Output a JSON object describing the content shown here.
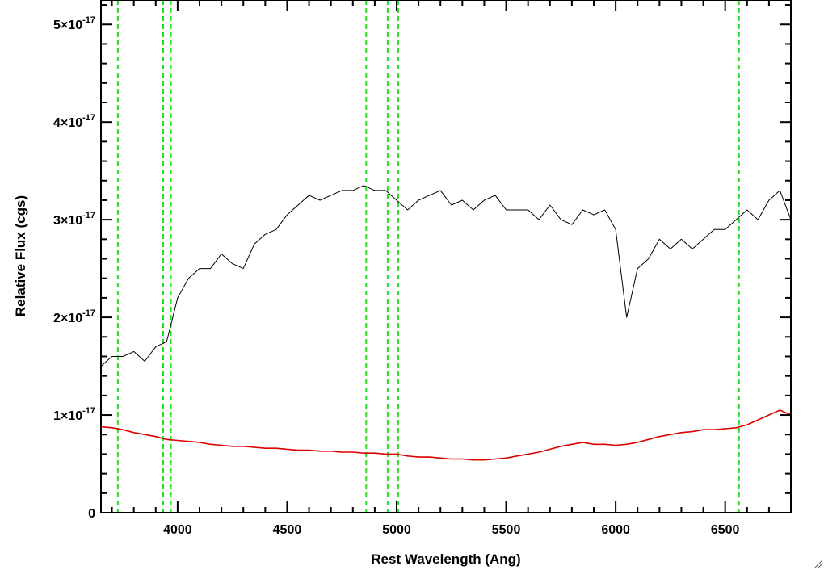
{
  "chart_data": {
    "type": "line",
    "xlabel": "Rest Wavelength (Ang)",
    "ylabel": "Relative Flux (cgs)",
    "xlim": [
      3650,
      6800
    ],
    "ylim": [
      0,
      5.25e-17
    ],
    "x_ticks": [
      {
        "value": 4000,
        "label": "4000"
      },
      {
        "value": 4500,
        "label": "4500"
      },
      {
        "value": 5000,
        "label": "5000"
      },
      {
        "value": 5500,
        "label": "5500"
      },
      {
        "value": 6000,
        "label": "6000"
      },
      {
        "value": 6500,
        "label": "6500"
      }
    ],
    "y_ticks": [
      {
        "value": 0,
        "label": "0",
        "mantissa": "",
        "exponent": ""
      },
      {
        "value": 1e-17,
        "label": "1×10",
        "mantissa": "1×10",
        "exponent": "-17"
      },
      {
        "value": 2e-17,
        "label": "2×10",
        "mantissa": "2×10",
        "exponent": "-17"
      },
      {
        "value": 3e-17,
        "label": "3×10",
        "mantissa": "3×10",
        "exponent": "-17"
      },
      {
        "value": 4e-17,
        "label": "4×10",
        "mantissa": "4×10",
        "exponent": "-17"
      },
      {
        "value": 5e-17,
        "label": "5×10",
        "mantissa": "5×10",
        "exponent": "-17"
      }
    ],
    "vertical_lines": [
      3727,
      3934,
      3969,
      4861,
      4959,
      5007,
      6563
    ],
    "series": [
      {
        "color": "#000000",
        "points": [
          [
            3650,
            1.5e-17
          ],
          [
            3700,
            1.6e-17
          ],
          [
            3750,
            1.6e-17
          ],
          [
            3800,
            1.65e-17
          ],
          [
            3850,
            1.55e-17
          ],
          [
            3900,
            1.7e-17
          ],
          [
            3950,
            1.75e-17
          ],
          [
            4000,
            2.2e-17
          ],
          [
            4050,
            2.4e-17
          ],
          [
            4100,
            2.5e-17
          ],
          [
            4150,
            2.5e-17
          ],
          [
            4200,
            2.65e-17
          ],
          [
            4250,
            2.55e-17
          ],
          [
            4300,
            2.5e-17
          ],
          [
            4350,
            2.75e-17
          ],
          [
            4400,
            2.85e-17
          ],
          [
            4450,
            2.9e-17
          ],
          [
            4500,
            3.05e-17
          ],
          [
            4550,
            3.15e-17
          ],
          [
            4600,
            3.25e-17
          ],
          [
            4650,
            3.2e-17
          ],
          [
            4700,
            3.25e-17
          ],
          [
            4750,
            3.3e-17
          ],
          [
            4800,
            3.3e-17
          ],
          [
            4850,
            3.35e-17
          ],
          [
            4900,
            3.3e-17
          ],
          [
            4950,
            3.3e-17
          ],
          [
            5000,
            3.2e-17
          ],
          [
            5050,
            3.1e-17
          ],
          [
            5100,
            3.2e-17
          ],
          [
            5150,
            3.25e-17
          ],
          [
            5200,
            3.3e-17
          ],
          [
            5250,
            3.15e-17
          ],
          [
            5300,
            3.2e-17
          ],
          [
            5350,
            3.1e-17
          ],
          [
            5400,
            3.2e-17
          ],
          [
            5450,
            3.25e-17
          ],
          [
            5500,
            3.1e-17
          ],
          [
            5550,
            3.1e-17
          ],
          [
            5600,
            3.1e-17
          ],
          [
            5650,
            3e-17
          ],
          [
            5700,
            3.15e-17
          ],
          [
            5750,
            3e-17
          ],
          [
            5800,
            2.95e-17
          ],
          [
            5850,
            3.1e-17
          ],
          [
            5900,
            3.05e-17
          ],
          [
            5950,
            3.1e-17
          ],
          [
            6000,
            2.9e-17
          ],
          [
            6050,
            2e-17
          ],
          [
            6100,
            2.5e-17
          ],
          [
            6150,
            2.6e-17
          ],
          [
            6200,
            2.8e-17
          ],
          [
            6250,
            2.7e-17
          ],
          [
            6300,
            2.8e-17
          ],
          [
            6350,
            2.7e-17
          ],
          [
            6400,
            2.8e-17
          ],
          [
            6450,
            2.9e-17
          ],
          [
            6500,
            2.9e-17
          ],
          [
            6550,
            3e-17
          ],
          [
            6600,
            3.1e-17
          ],
          [
            6650,
            3e-17
          ],
          [
            6700,
            3.2e-17
          ],
          [
            6750,
            3.3e-17
          ],
          [
            6800,
            3e-17
          ]
        ]
      },
      {
        "color": "#dd0000",
        "points": [
          [
            3650,
            8.8e-18
          ],
          [
            3700,
            8.7e-18
          ],
          [
            3750,
            8.5e-18
          ],
          [
            3800,
            8.2e-18
          ],
          [
            3850,
            8e-18
          ],
          [
            3900,
            7.8e-18
          ],
          [
            3950,
            7.5e-18
          ],
          [
            4000,
            7.4e-18
          ],
          [
            4050,
            7.3e-18
          ],
          [
            4100,
            7.2e-18
          ],
          [
            4150,
            7e-18
          ],
          [
            4200,
            6.9e-18
          ],
          [
            4250,
            6.8e-18
          ],
          [
            4300,
            6.8e-18
          ],
          [
            4350,
            6.7e-18
          ],
          [
            4400,
            6.6e-18
          ],
          [
            4450,
            6.6e-18
          ],
          [
            4500,
            6.5e-18
          ],
          [
            4550,
            6.4e-18
          ],
          [
            4600,
            6.4e-18
          ],
          [
            4650,
            6.3e-18
          ],
          [
            4700,
            6.3e-18
          ],
          [
            4750,
            6.2e-18
          ],
          [
            4800,
            6.2e-18
          ],
          [
            4850,
            6.1e-18
          ],
          [
            4900,
            6.1e-18
          ],
          [
            4950,
            6e-18
          ],
          [
            5000,
            6e-18
          ],
          [
            5050,
            5.8e-18
          ],
          [
            5100,
            5.7e-18
          ],
          [
            5150,
            5.7e-18
          ],
          [
            5200,
            5.6e-18
          ],
          [
            5250,
            5.5e-18
          ],
          [
            5300,
            5.5e-18
          ],
          [
            5350,
            5.4e-18
          ],
          [
            5400,
            5.4e-18
          ],
          [
            5450,
            5.5e-18
          ],
          [
            5500,
            5.6e-18
          ],
          [
            5550,
            5.8e-18
          ],
          [
            5600,
            6e-18
          ],
          [
            5650,
            6.2e-18
          ],
          [
            5700,
            6.5e-18
          ],
          [
            5750,
            6.8e-18
          ],
          [
            5800,
            7e-18
          ],
          [
            5850,
            7.2e-18
          ],
          [
            5900,
            7e-18
          ],
          [
            5950,
            7e-18
          ],
          [
            6000,
            6.9e-18
          ],
          [
            6050,
            7e-18
          ],
          [
            6100,
            7.2e-18
          ],
          [
            6150,
            7.5e-18
          ],
          [
            6200,
            7.8e-18
          ],
          [
            6250,
            8e-18
          ],
          [
            6300,
            8.2e-18
          ],
          [
            6350,
            8.3e-18
          ],
          [
            6400,
            8.5e-18
          ],
          [
            6450,
            8.5e-18
          ],
          [
            6500,
            8.6e-18
          ],
          [
            6550,
            8.7e-18
          ],
          [
            6600,
            9e-18
          ],
          [
            6650,
            9.5e-18
          ],
          [
            6700,
            1e-17
          ],
          [
            6750,
            1.05e-17
          ],
          [
            6800,
            1e-17
          ]
        ]
      }
    ]
  }
}
